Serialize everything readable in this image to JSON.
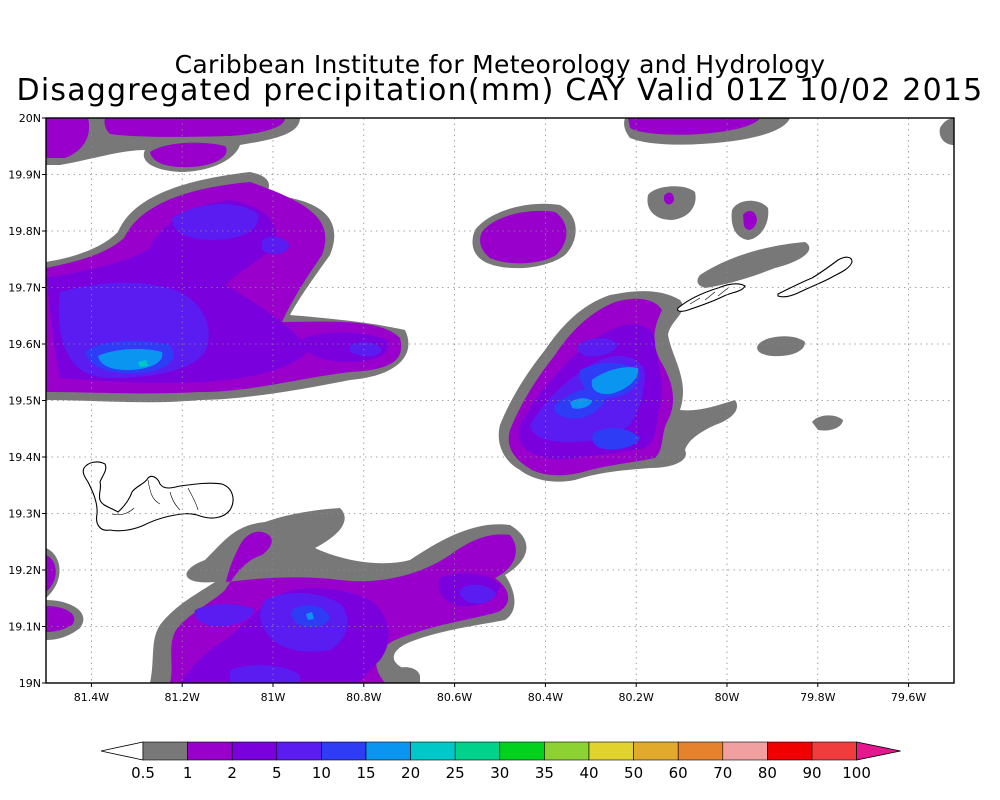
{
  "title": {
    "line1": "Caribbean Institute for Meteorology and Hydrology",
    "line2": "Disaggregated precipitation(mm) CAY Valid 01Z 10/02 2015"
  },
  "map": {
    "lon_range": [
      -81.5,
      -79.5
    ],
    "lat_range": [
      19.0,
      20.0
    ],
    "grid": true,
    "lat_labels": [
      "20N",
      "19.9N",
      "19.8N",
      "19.7N",
      "19.6N",
      "19.5N",
      "19.4N",
      "19.3N",
      "19.2N",
      "19.1N",
      "19N"
    ],
    "lon_labels": [
      "81.4W",
      "81.2W",
      "81W",
      "80.8W",
      "80.6W",
      "80.4W",
      "80.2W",
      "80W",
      "79.8W",
      "79.6W"
    ],
    "islands": [
      "Grand Cayman",
      "Cayman Brac",
      "Little Cayman"
    ]
  },
  "colorbar": {
    "levels": [
      "0.5",
      "1",
      "2",
      "5",
      "10",
      "15",
      "20",
      "25",
      "30",
      "35",
      "40",
      "50",
      "60",
      "70",
      "80",
      "90",
      "100"
    ],
    "colors": [
      "#787878",
      "#9900cc",
      "#7a00dd",
      "#5a1cf0",
      "#2e3cf5",
      "#0a96f0",
      "#00c8c8",
      "#00d28c",
      "#00d21e",
      "#8cd232",
      "#e1d22d",
      "#e1aa2d",
      "#e6822d",
      "#f0a0a0",
      "#f00000",
      "#f03c3c"
    ],
    "under_color": "#ffffff",
    "over_color": "#e6168c"
  },
  "precip_colors": {
    "gray": "#787878",
    "purple": "#9900cc",
    "violet": "#7a00dd",
    "indigo": "#5a1cf0",
    "blue": "#2e3cf5",
    "skyblue": "#0a96f0",
    "teal": "#00c8c8"
  }
}
